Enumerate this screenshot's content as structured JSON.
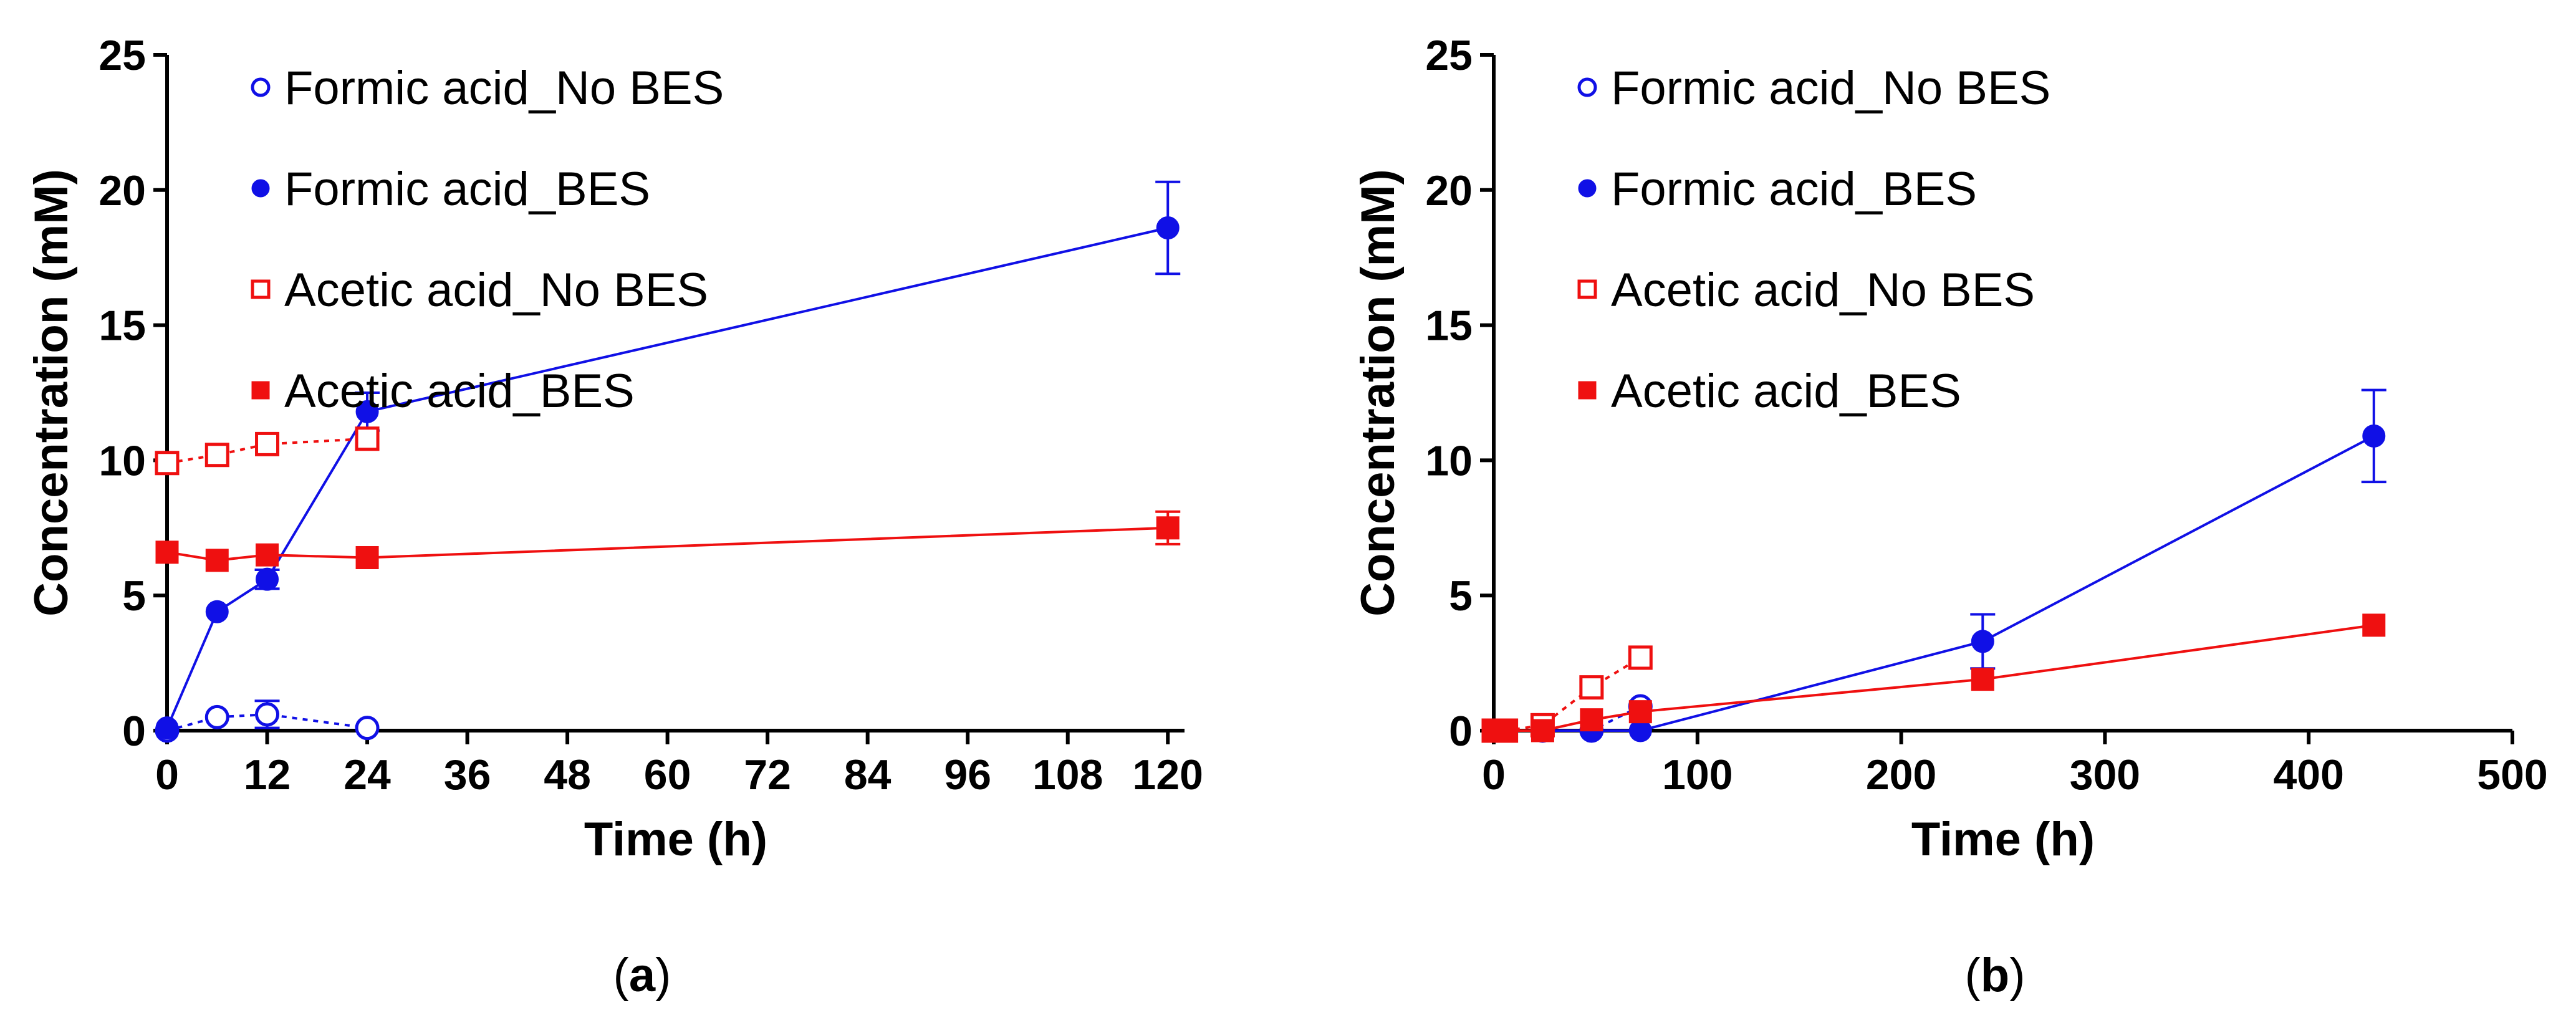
{
  "colors": {
    "formic": "#1010e6",
    "acetic": "#ef1010",
    "axis": "#000000"
  },
  "chart_data": [
    {
      "type": "line",
      "panel_label": "a",
      "xlabel": "Time (h)",
      "ylabel": "Concentration (mM)",
      "xlim": [
        0,
        122
      ],
      "ylim": [
        0,
        25
      ],
      "xticks": [
        0,
        12,
        24,
        36,
        48,
        60,
        72,
        84,
        96,
        108,
        120
      ],
      "yticks": [
        0,
        5,
        10,
        15,
        20,
        25
      ],
      "legend_position": "top-left",
      "series": [
        {
          "name": "Formic acid_No BES",
          "marker": "circle-open",
          "line": "dotted",
          "color": "#1010e6",
          "x": [
            0,
            6,
            12,
            24
          ],
          "y": [
            0,
            0.5,
            0.6,
            0.1
          ],
          "err": [
            0,
            0,
            0.5,
            0
          ]
        },
        {
          "name": "Formic acid_BES",
          "marker": "circle-filled",
          "line": "solid",
          "color": "#1010e6",
          "x": [
            0,
            6,
            12,
            24,
            120
          ],
          "y": [
            0.1,
            4.4,
            5.6,
            11.8,
            18.6
          ],
          "err": [
            0,
            0,
            0.35,
            0.7,
            1.7
          ]
        },
        {
          "name": "Acetic acid_No BES",
          "marker": "square-open",
          "line": "dotted",
          "color": "#ef1010",
          "x": [
            0,
            6,
            12,
            24
          ],
          "y": [
            9.9,
            10.2,
            10.6,
            10.8
          ],
          "err": [
            0,
            0,
            0,
            0
          ]
        },
        {
          "name": "Acetic acid_BES",
          "marker": "square-filled",
          "line": "solid",
          "color": "#ef1010",
          "x": [
            0,
            6,
            12,
            24,
            120
          ],
          "y": [
            6.6,
            6.3,
            6.5,
            6.4,
            7.5
          ],
          "err": [
            0,
            0,
            0,
            0,
            0.6
          ]
        }
      ]
    },
    {
      "type": "line",
      "panel_label": "b",
      "xlabel": "Time (h)",
      "ylabel": "Concentration (mM)",
      "xlim": [
        0,
        500
      ],
      "ylim": [
        0,
        25
      ],
      "xticks": [
        0,
        100,
        200,
        300,
        400,
        500
      ],
      "yticks": [
        0,
        5,
        10,
        15,
        20,
        25
      ],
      "legend_position": "top-left",
      "series": [
        {
          "name": "Formic acid_No BES",
          "marker": "circle-open",
          "line": "dotted",
          "color": "#1010e6",
          "x": [
            0,
            3,
            6,
            24,
            48,
            72
          ],
          "y": [
            0,
            0,
            0,
            0,
            0,
            0.9
          ],
          "err": [
            0,
            0,
            0,
            0,
            0,
            0
          ]
        },
        {
          "name": "Formic acid_BES",
          "marker": "circle-filled",
          "line": "solid",
          "color": "#1010e6",
          "x": [
            0,
            3,
            6,
            24,
            48,
            72,
            240,
            432
          ],
          "y": [
            0,
            0,
            0,
            0,
            0,
            0,
            3.3,
            10.9
          ],
          "err": [
            0,
            0,
            0,
            0,
            0,
            0,
            1.0,
            1.7
          ]
        },
        {
          "name": "Acetic acid_No BES",
          "marker": "square-open",
          "line": "dotted",
          "color": "#ef1010",
          "x": [
            0,
            3,
            6,
            24,
            48,
            72
          ],
          "y": [
            0,
            0,
            0,
            0.2,
            1.6,
            2.7
          ],
          "err": [
            0,
            0,
            0,
            0,
            0,
            0
          ]
        },
        {
          "name": "Acetic acid_BES",
          "marker": "square-filled",
          "line": "solid",
          "color": "#ef1010",
          "x": [
            0,
            3,
            6,
            24,
            48,
            72,
            240,
            432
          ],
          "y": [
            0,
            0,
            0,
            0,
            0.4,
            0.7,
            1.9,
            3.9
          ],
          "err": [
            0,
            0,
            0,
            0,
            0,
            0,
            0,
            0
          ]
        }
      ]
    }
  ]
}
